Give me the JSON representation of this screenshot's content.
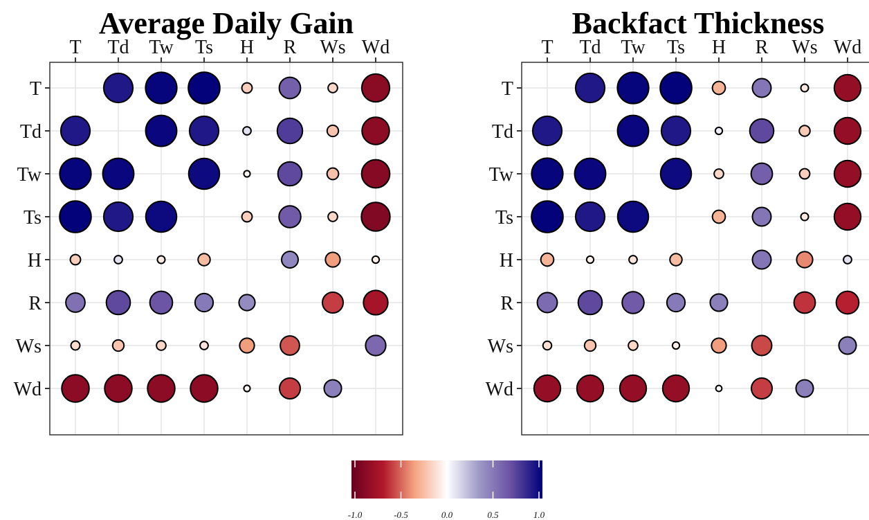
{
  "chart_data": [
    {
      "type": "correlation-bubble-matrix",
      "title": "Average Daily Gain",
      "categories": [
        "T",
        "Td",
        "Tw",
        "Ts",
        "H",
        "R",
        "Ws",
        "Wd"
      ],
      "matrix": [
        [
          null,
          0.9,
          0.98,
          0.99,
          -0.18,
          0.6,
          -0.15,
          -0.85
        ],
        [
          0.9,
          null,
          0.97,
          0.9,
          0.1,
          0.75,
          -0.22,
          -0.83
        ],
        [
          0.98,
          0.97,
          null,
          0.96,
          -0.03,
          0.7,
          -0.23,
          -0.86
        ],
        [
          0.99,
          0.9,
          0.96,
          null,
          -0.18,
          0.62,
          -0.15,
          -0.88
        ],
        [
          -0.18,
          0.1,
          -0.08,
          -0.25,
          null,
          0.42,
          -0.35,
          -0.06
        ],
        [
          0.52,
          0.7,
          0.65,
          0.48,
          0.4,
          null,
          -0.58,
          -0.72
        ],
        [
          -0.13,
          -0.22,
          -0.15,
          -0.1,
          -0.35,
          -0.52,
          null,
          0.56
        ],
        [
          -0.83,
          -0.83,
          -0.83,
          -0.83,
          -0.03,
          -0.58,
          0.45,
          null
        ]
      ]
    },
    {
      "type": "correlation-bubble-matrix",
      "title": "Backfact Thickness",
      "categories": [
        "T",
        "Td",
        "Tw",
        "Ts",
        "H",
        "R",
        "Ws",
        "Wd"
      ],
      "matrix": [
        [
          null,
          0.9,
          0.98,
          0.99,
          -0.28,
          0.5,
          -0.08,
          -0.8
        ],
        [
          0.9,
          null,
          0.97,
          0.9,
          0.06,
          0.7,
          -0.2,
          -0.8
        ],
        [
          0.98,
          0.97,
          null,
          0.96,
          -0.15,
          0.6,
          -0.18,
          -0.8
        ],
        [
          0.99,
          0.9,
          0.96,
          null,
          -0.28,
          0.5,
          -0.08,
          -0.8
        ],
        [
          -0.28,
          -0.06,
          -0.1,
          -0.25,
          null,
          0.5,
          -0.4,
          0.1
        ],
        [
          0.55,
          0.7,
          0.62,
          0.48,
          0.45,
          null,
          -0.6,
          -0.65
        ],
        [
          -0.12,
          -0.22,
          -0.15,
          -0.06,
          -0.35,
          -0.55,
          null,
          0.45
        ],
        [
          -0.8,
          -0.8,
          -0.8,
          -0.8,
          -0.02,
          -0.58,
          0.45,
          null
        ]
      ]
    }
  ],
  "legend": {
    "type": "colorbar",
    "ticks": [
      "-1.0",
      "-0.5",
      "0.0",
      "0.5",
      "1.0"
    ],
    "range": [
      -1,
      1
    ],
    "colors": [
      "#67001f",
      "#b2182b",
      "#f4a582",
      "#ffffff",
      "#9e9ac8",
      "#6a51a3",
      "#00007a"
    ]
  },
  "style": {
    "grid_color": "#ebebeb",
    "panel_border": "#333333",
    "tick_color": "#333333"
  }
}
